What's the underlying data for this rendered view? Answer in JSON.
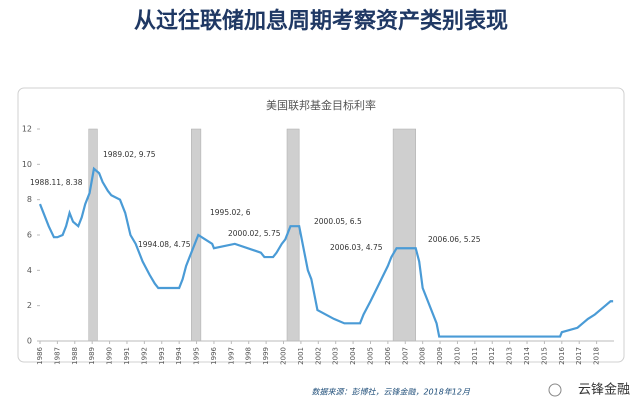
{
  "header": {
    "title": "从过往联储加息周期考察资产类别表现"
  },
  "chart_data": {
    "type": "line",
    "title": "美国联邦基金目标利率",
    "x": [
      1986.0,
      1986.3,
      1986.5,
      1986.8,
      1987.0,
      1987.3,
      1987.5,
      1987.7,
      1987.9,
      1988.2,
      1988.4,
      1988.6,
      1988.85,
      1989.1,
      1989.4,
      1989.6,
      1989.9,
      1990.1,
      1990.6,
      1990.9,
      1991.2,
      1991.5,
      1991.9,
      1992.3,
      1992.6,
      1992.8,
      1994.0,
      1994.2,
      1994.4,
      1994.6,
      1994.9,
      1995.1,
      1995.5,
      1995.9,
      1996.0,
      1997.2,
      1998.7,
      1998.9,
      1999.4,
      1999.6,
      1999.9,
      2000.1,
      2000.4,
      2000.9,
      2001.0,
      2001.2,
      2001.4,
      2001.6,
      2001.8,
      2001.95,
      2002.9,
      2003.5,
      2004.4,
      2004.6,
      2005.0,
      2005.5,
      2006.0,
      2006.2,
      2006.5,
      2007.6,
      2007.8,
      2008.0,
      2008.3,
      2008.8,
      2008.95,
      2015.9,
      2016.0,
      2016.9,
      2017.2,
      2017.5,
      2017.9,
      2018.2,
      2018.5,
      2018.8,
      2018.95
    ],
    "series": [
      {
        "name": "美国联邦基金目标利率",
        "color": "#4a9bd6",
        "values": [
          7.75,
          7.0,
          6.5,
          5.875,
          5.875,
          6.0,
          6.5,
          7.25,
          6.75,
          6.5,
          7.0,
          7.75,
          8.375,
          9.75,
          9.5,
          9.0,
          8.5,
          8.25,
          8.0,
          7.25,
          6.0,
          5.5,
          4.5,
          3.75,
          3.25,
          3.0,
          3.0,
          3.5,
          4.25,
          4.75,
          5.5,
          6.0,
          5.75,
          5.5,
          5.25,
          5.5,
          5.0,
          4.75,
          4.75,
          5.0,
          5.5,
          5.75,
          6.5,
          6.5,
          6.0,
          5.0,
          4.0,
          3.5,
          2.5,
          1.75,
          1.25,
          1.0,
          1.0,
          1.5,
          2.25,
          3.25,
          4.25,
          4.75,
          5.25,
          5.25,
          4.5,
          3.0,
          2.25,
          1.0,
          0.25,
          0.25,
          0.5,
          0.75,
          1.0,
          1.25,
          1.5,
          1.75,
          2.0,
          2.25,
          2.25
        ]
      }
    ],
    "xlim": [
      1986,
      2019
    ],
    "xticks": [
      1986,
      1987,
      1988,
      1989,
      1990,
      1991,
      1992,
      1993,
      1994,
      1995,
      1996,
      1997,
      1998,
      1999,
      2000,
      2001,
      2002,
      2003,
      2004,
      2005,
      2006,
      2007,
      2008,
      2009,
      2010,
      2011,
      2012,
      2013,
      2014,
      2015,
      2016,
      2017,
      2018
    ],
    "ylim": [
      0,
      12
    ],
    "yticks": [
      0,
      2,
      4,
      6,
      8,
      10,
      12
    ],
    "grid": false,
    "shaded_periods": [
      [
        1988.8,
        1989.3
      ],
      [
        1994.7,
        1995.25
      ],
      [
        2000.2,
        2000.9
      ],
      [
        2006.3,
        2007.6
      ]
    ],
    "annotations": [
      "1988.11, 8.38",
      "1989.02, 9.75",
      "1994.08, 4.75",
      "1995.02, 6",
      "2000.02, 5.75",
      "2000.05, 6.5",
      "2006.03, 4.75",
      "2006.06, 5.25"
    ],
    "source": "数据来源：彭博社，云锋金融，2018年12月"
  },
  "logo": "云锋金融"
}
